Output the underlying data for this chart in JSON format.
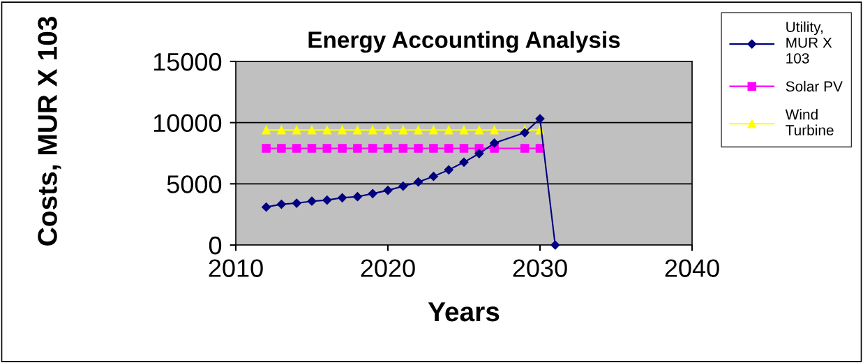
{
  "chart_data": {
    "type": "line",
    "title": "Energy Accounting Analysis",
    "xlabel": "Years",
    "ylabel": "Costs, MUR X 103",
    "x": [
      2012,
      2013,
      2014,
      2015,
      2016,
      2017,
      2018,
      2019,
      2020,
      2021,
      2022,
      2023,
      2024,
      2025,
      2026,
      2027,
      2029,
      2030,
      2031
    ],
    "series": [
      {
        "name": "Utility, MUR X 103",
        "color": "#000080",
        "marker": "diamond",
        "values": [
          3100,
          3330,
          3420,
          3580,
          3670,
          3860,
          3950,
          4200,
          4470,
          4810,
          5150,
          5610,
          6140,
          6770,
          7470,
          8330,
          9180,
          10320,
          0
        ]
      },
      {
        "name": "Solar PV",
        "color": "#ff00ff",
        "marker": "square",
        "x": [
          2012,
          2013,
          2014,
          2015,
          2016,
          2017,
          2018,
          2019,
          2020,
          2021,
          2022,
          2023,
          2024,
          2025,
          2026,
          2027,
          2029,
          2030
        ],
        "values": [
          7900,
          7900,
          7900,
          7900,
          7900,
          7900,
          7900,
          7900,
          7900,
          7900,
          7900,
          7900,
          7900,
          7900,
          7900,
          7900,
          7900,
          7900
        ]
      },
      {
        "name": "Wind Turbine",
        "color": "#ffff00",
        "marker": "triangle",
        "x": [
          2012,
          2013,
          2014,
          2015,
          2016,
          2017,
          2018,
          2019,
          2020,
          2021,
          2022,
          2023,
          2024,
          2025,
          2026,
          2027,
          2029,
          2030
        ],
        "values": [
          9400,
          9400,
          9400,
          9400,
          9400,
          9400,
          9400,
          9400,
          9400,
          9400,
          9400,
          9400,
          9400,
          9400,
          9400,
          9400,
          9400,
          9400
        ]
      }
    ],
    "xlim": [
      2010,
      2040
    ],
    "xticks": [
      2010,
      2020,
      2030,
      2040
    ],
    "ylim": [
      0,
      15000
    ],
    "yticks": [
      0,
      5000,
      10000,
      15000
    ],
    "grid": "y",
    "legend": "top right"
  }
}
